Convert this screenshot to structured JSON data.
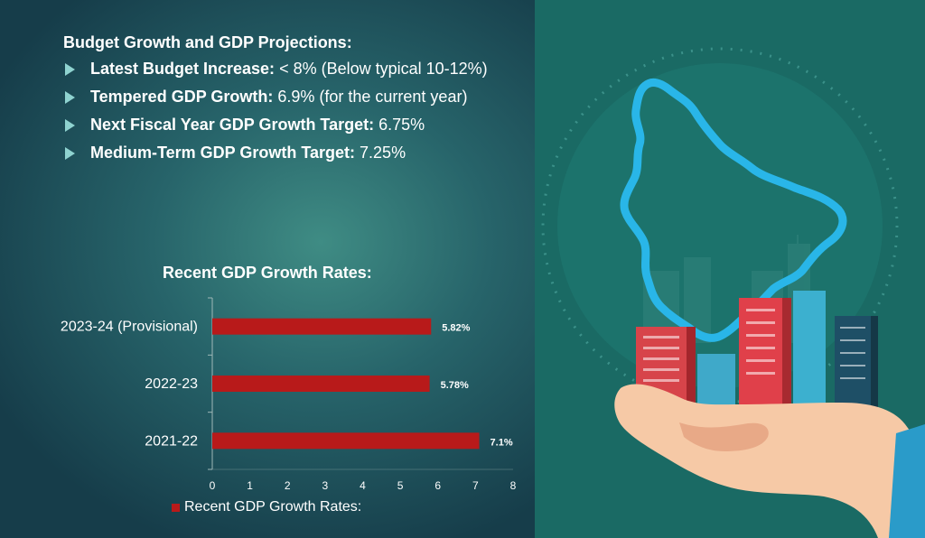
{
  "content": {
    "heading": "Budget Growth and GDP Projections:",
    "bullets": [
      {
        "bold": "Latest Budget Increase:",
        "text": " < 8% (Below typical 10-12%)"
      },
      {
        "bold": "Tempered GDP Growth:",
        "text": " 6.9% (for the current year)"
      },
      {
        "bold": "Next Fiscal Year GDP Growth Target:",
        "text": " 6.75%"
      },
      {
        "bold": "Medium-Term GDP Growth Target:",
        "text": " 7.25%"
      }
    ]
  },
  "colors": {
    "bar": "#b81a1a",
    "text": "#ffffff",
    "bullet_arrow": "#8fd3d0",
    "map_outline": "#29b6e8",
    "right_background": "#1a6a64"
  },
  "chart_data": {
    "type": "bar",
    "orientation": "horizontal",
    "title": "Recent GDP Growth Rates:",
    "categories": [
      "2023-24 (Provisional)",
      "2022-23",
      "2021-22"
    ],
    "series": [
      {
        "name": "Recent GDP Growth Rates:",
        "values": [
          5.82,
          5.78,
          7.1
        ],
        "labels": [
          "5.82%",
          "5.78%",
          "7.1%"
        ]
      }
    ],
    "xlim": [
      0,
      8
    ],
    "xticks": [
      0,
      1,
      2,
      3,
      4,
      5,
      6,
      7,
      8
    ],
    "legend_position": "bottom",
    "grid": false
  },
  "illustration": {
    "description_icons": [
      "map-outline-icon",
      "city-buildings-icon",
      "hand-icon"
    ]
  }
}
